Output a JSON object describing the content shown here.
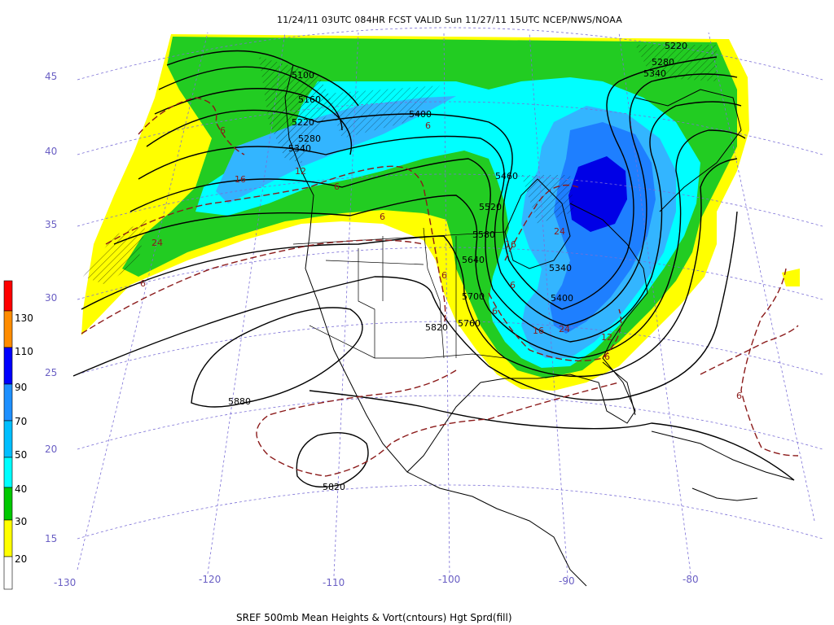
{
  "header": {
    "title": "11/24/11 03UTC  084HR  FCST VALID Sun 11/27/11 15UTC  NCEP/NWS/NOAA"
  },
  "footer": {
    "caption": "SREF 500mb Mean Heights & Vort(cntours) Hgt Sprd(fill)"
  },
  "latitude_labels": [
    "45",
    "40",
    "35",
    "30",
    "25",
    "20",
    "15"
  ],
  "longitude_labels": [
    "-130",
    "-120",
    "-110",
    "-100",
    "-90",
    "-80"
  ],
  "colorbar": {
    "labels": [
      "130",
      "110",
      "90",
      "70",
      "50",
      "40",
      "30",
      "20"
    ],
    "colors": [
      "#ff0000",
      "#ff8c00",
      "#0000ff",
      "#1e90ff",
      "#00bfff",
      "#00ffff",
      "#00c800",
      "#ffff00",
      "#ffffff"
    ]
  },
  "fill_colors": {
    "yellow": "#ffff00",
    "green": "#22cc22",
    "cyan": "#00ffff",
    "light_blue": "#33b5ff",
    "blue": "#1e7fff",
    "dark_blue": "#0000e6"
  },
  "height_labels": {
    "h5100": "5100",
    "h5160": "5160",
    "h5220a": "5220",
    "h5280a": "5280",
    "h5340a": "5340",
    "h5400a": "5400",
    "h5460": "5460",
    "h5520": "5520",
    "h5580": "5580",
    "h5640": "5640",
    "h5700": "5700",
    "h5760": "5760",
    "h5820a": "5820",
    "h5880": "5880",
    "h5820b": "5820",
    "h5340b": "5340",
    "h5400b": "5400",
    "h5220b": "5220",
    "h5280b": "5280",
    "h5340c": "5340"
  },
  "vort_labels": {
    "v1": "6",
    "v2": "6",
    "v3": "16",
    "v4": "24",
    "v5": "6",
    "v6": "6",
    "v7": "6",
    "v8": "12",
    "v9": "6",
    "v10": "16",
    "v11": "24",
    "v12": "6",
    "v13": "6",
    "v14": "16",
    "v15": "24",
    "v16": "6",
    "v17": "6",
    "v18": "12"
  }
}
